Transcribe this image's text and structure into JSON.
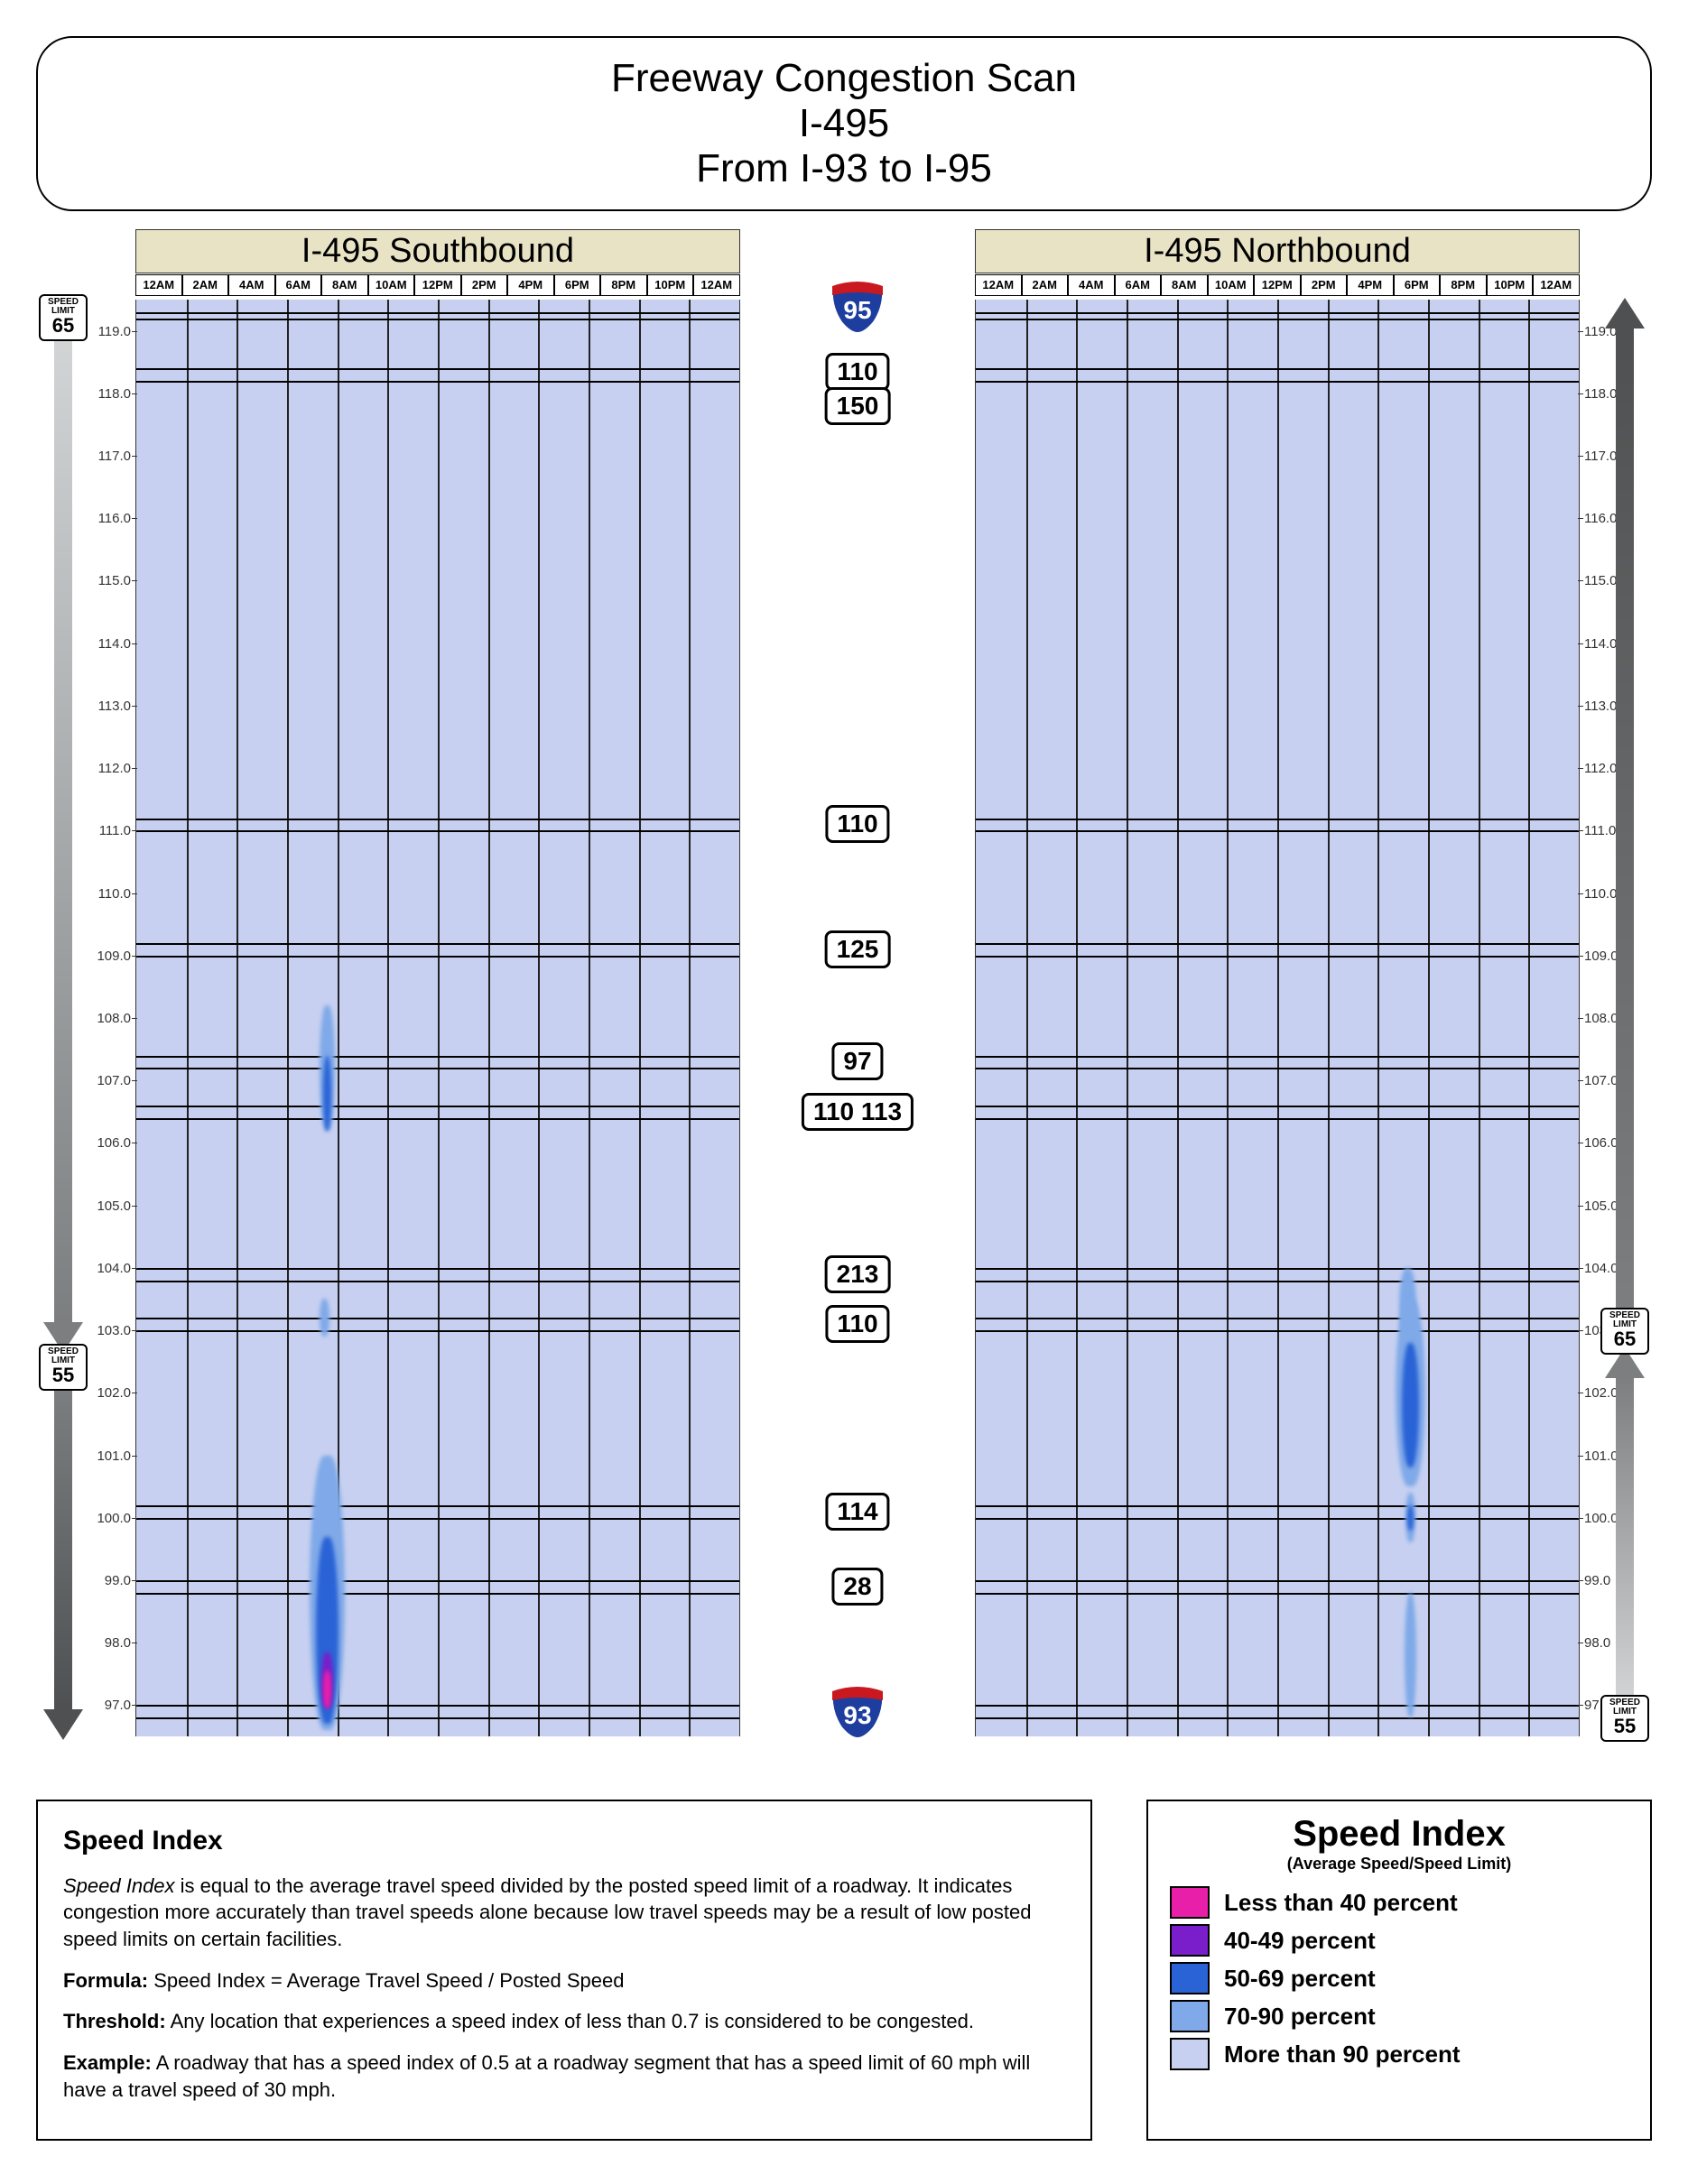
{
  "title": {
    "line1": "Freeway Congestion Scan",
    "line2": "I-495",
    "line3": "From I-93 to I-95"
  },
  "directions": {
    "south": "I-495 Southbound",
    "north": "I-495 Northbound"
  },
  "time_ticks": [
    "12AM",
    "2AM",
    "4AM",
    "6AM",
    "8AM",
    "10AM",
    "12PM",
    "2PM",
    "4PM",
    "6PM",
    "8PM",
    "10PM",
    "12AM"
  ],
  "mile_range": {
    "min": 96.5,
    "max": 119.5
  },
  "mile_labels": [
    119.0,
    118.0,
    117.0,
    116.0,
    115.0,
    114.0,
    113.0,
    112.0,
    111.0,
    110.0,
    109.0,
    108.0,
    107.0,
    106.0,
    105.0,
    104.0,
    103.0,
    102.0,
    101.0,
    100.0,
    99.0,
    98.0,
    97.0
  ],
  "panel_hlines": [
    119.3,
    119.2,
    118.4,
    118.2,
    111.2,
    111.0,
    109.2,
    109.0,
    107.4,
    107.2,
    106.6,
    106.4,
    104.0,
    103.8,
    103.2,
    103.0,
    100.2,
    100.0,
    99.0,
    98.8,
    97.0,
    96.8
  ],
  "center_markers": [
    {
      "type": "shield",
      "route": "95",
      "mile": 119.4,
      "top_color": "#c91820",
      "bottom_color": "#1d3e9e"
    },
    {
      "type": "badge",
      "label": "110",
      "mile": 118.35
    },
    {
      "type": "badge",
      "label": "150",
      "mile": 117.8
    },
    {
      "type": "badge",
      "label": "110",
      "mile": 111.1
    },
    {
      "type": "badge",
      "label": "125",
      "mile": 109.1
    },
    {
      "type": "badge",
      "label": "97",
      "mile": 107.3
    },
    {
      "type": "badge",
      "label": "110 113",
      "mile": 106.5
    },
    {
      "type": "badge",
      "label": "213",
      "mile": 103.9
    },
    {
      "type": "badge",
      "label": "110",
      "mile": 103.1
    },
    {
      "type": "badge",
      "label": "114",
      "mile": 100.1
    },
    {
      "type": "badge",
      "label": "28",
      "mile": 98.9
    },
    {
      "type": "shield",
      "route": "93",
      "mile": 96.9,
      "top_color": "#c91820",
      "bottom_color": "#1d3e9e"
    }
  ],
  "speed_limit_break_mile": 102.7,
  "side_columns": {
    "left": {
      "top_sign": "65",
      "bottom_sign": "55",
      "top_arrow_color": "#b8bbbd",
      "bottom_arrow_color": "#5a5c5d",
      "arrow_dir": "down"
    },
    "right": {
      "top_sign": "65",
      "bottom_sign": "55",
      "top_arrow_color": "#5a5c5d",
      "bottom_arrow_color": "#b8bbbd",
      "arrow_dir": "up"
    }
  },
  "colors": {
    "panel_bg": "#c7d0f0",
    "dir_title_bg": "#e8e3c4",
    "level90": "#c7d0f0",
    "level70": "#7fa9e8",
    "level50": "#2a63d6",
    "level40": "#7a1ecb",
    "level_lt40": "#e81fa9"
  },
  "congestion": {
    "south": [
      {
        "time": 7.6,
        "mile": 107.2,
        "w": 0.6,
        "h": 2.0,
        "color": "#7fa9e8"
      },
      {
        "time": 7.6,
        "mile": 106.8,
        "w": 0.35,
        "h": 1.2,
        "color": "#2a63d6"
      },
      {
        "time": 7.5,
        "mile": 103.2,
        "w": 0.4,
        "h": 0.6,
        "color": "#7fa9e8"
      },
      {
        "time": 7.6,
        "mile": 98.8,
        "w": 1.4,
        "h": 4.4,
        "color": "#7fa9e8"
      },
      {
        "time": 7.6,
        "mile": 98.2,
        "w": 0.9,
        "h": 3.0,
        "color": "#2a63d6"
      },
      {
        "time": 7.6,
        "mile": 97.4,
        "w": 0.45,
        "h": 0.9,
        "color": "#7a1ecb"
      },
      {
        "time": 7.6,
        "mile": 97.25,
        "w": 0.3,
        "h": 0.6,
        "color": "#e81fa9"
      }
    ],
    "north": [
      {
        "time": 17.2,
        "mile": 103.4,
        "w": 0.7,
        "h": 1.2,
        "color": "#7fa9e8"
      },
      {
        "time": 17.3,
        "mile": 102.0,
        "w": 1.2,
        "h": 3.0,
        "color": "#7fa9e8"
      },
      {
        "time": 17.3,
        "mile": 101.8,
        "w": 0.7,
        "h": 2.0,
        "color": "#2a63d6"
      },
      {
        "time": 17.3,
        "mile": 100.0,
        "w": 0.4,
        "h": 0.8,
        "color": "#7fa9e8"
      },
      {
        "time": 17.3,
        "mile": 100.0,
        "w": 0.25,
        "h": 0.4,
        "color": "#2a63d6"
      },
      {
        "time": 17.3,
        "mile": 97.8,
        "w": 0.5,
        "h": 2.0,
        "color": "#7fa9e8"
      }
    ]
  },
  "legend": {
    "title": "Speed Index",
    "subtitle": "(Average Speed/Speed Limit)",
    "items": [
      {
        "color": "#e81fa9",
        "label": "Less than 40 percent"
      },
      {
        "color": "#7a1ecb",
        "label": "40-49 percent"
      },
      {
        "color": "#2a63d6",
        "label": "50-69 percent"
      },
      {
        "color": "#7fa9e8",
        "label": "70-90 percent"
      },
      {
        "color": "#c7d0f0",
        "label": "More than 90 percent"
      }
    ]
  },
  "description": {
    "heading": "Speed Index",
    "p1_a": "Speed Index",
    "p1_b": " is equal to the average travel speed divided by the posted speed limit of a roadway. It indicates congestion more accurately than travel speeds alone because low travel speeds may be a result of low posted speed limits on certain facilities.",
    "formula_label": "Formula:",
    "formula_text": " Speed Index = Average Travel Speed / Posted Speed",
    "threshold_label": "Threshold:",
    "threshold_text": " Any location that experiences a speed index of less than 0.7 is considered to be congested.",
    "example_label": "Example:",
    "example_text": " A roadway that has a speed index of 0.5 at a roadway segment that has a speed limit of 60 mph will have a travel speed of 30 mph."
  },
  "sign_label": {
    "l1": "SPEED",
    "l2": "LIMIT"
  }
}
